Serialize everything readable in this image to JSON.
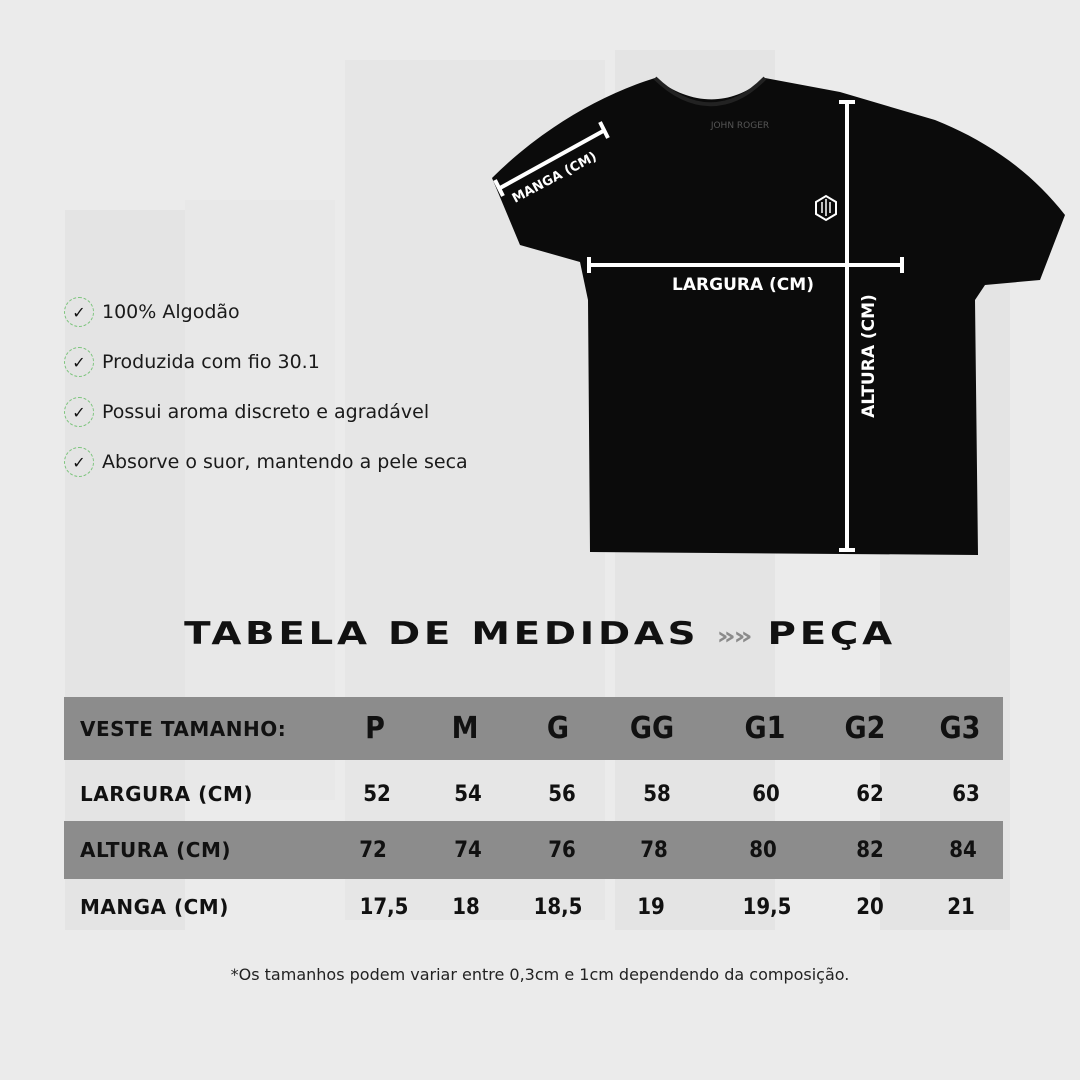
{
  "brand_logo_text": "JOHN ROGER",
  "features": [
    {
      "icon": "check-circle-icon",
      "text": "100% Algodão"
    },
    {
      "icon": "check-circle-icon",
      "text": "Produzida com fio 30.1"
    },
    {
      "icon": "check-circle-icon",
      "text": "Possui aroma discreto e agradável"
    },
    {
      "icon": "check-circle-icon",
      "text": "Absorve o suor, mantendo a pele seca"
    }
  ],
  "shirt": {
    "sleeve_label": "MANGA (CM)",
    "width_label": "LARGURA (CM)",
    "height_label": "ALTURA (CM)"
  },
  "table": {
    "title_left": "TABELA DE MEDIDAS",
    "title_arrow": "»»",
    "title_right": "PEÇA",
    "header_label": "VESTE TAMANHO:",
    "sizes": [
      "P",
      "M",
      "G",
      "GG",
      "G1",
      "G2",
      "G3"
    ],
    "rows": [
      {
        "label": "LARGURA (CM)",
        "values": [
          "52",
          "54",
          "56",
          "58",
          "60",
          "62",
          "63"
        ]
      },
      {
        "label": "ALTURA (CM)",
        "values": [
          "72",
          "74",
          "76",
          "78",
          "80",
          "82",
          "84"
        ]
      },
      {
        "label": "MANGA (CM)",
        "values": [
          "17,5",
          "18",
          "18,5",
          "19",
          "19,5",
          "20",
          "21"
        ]
      }
    ]
  },
  "footnote": "*Os tamanhos podem variar entre 0,3cm e 1cm dependendo da composição.",
  "colors": {
    "background": "#ebebeb",
    "table_gray": "#8c8c8c",
    "check_ring": "#7bc47b",
    "shirt": "#0b0b0b"
  }
}
